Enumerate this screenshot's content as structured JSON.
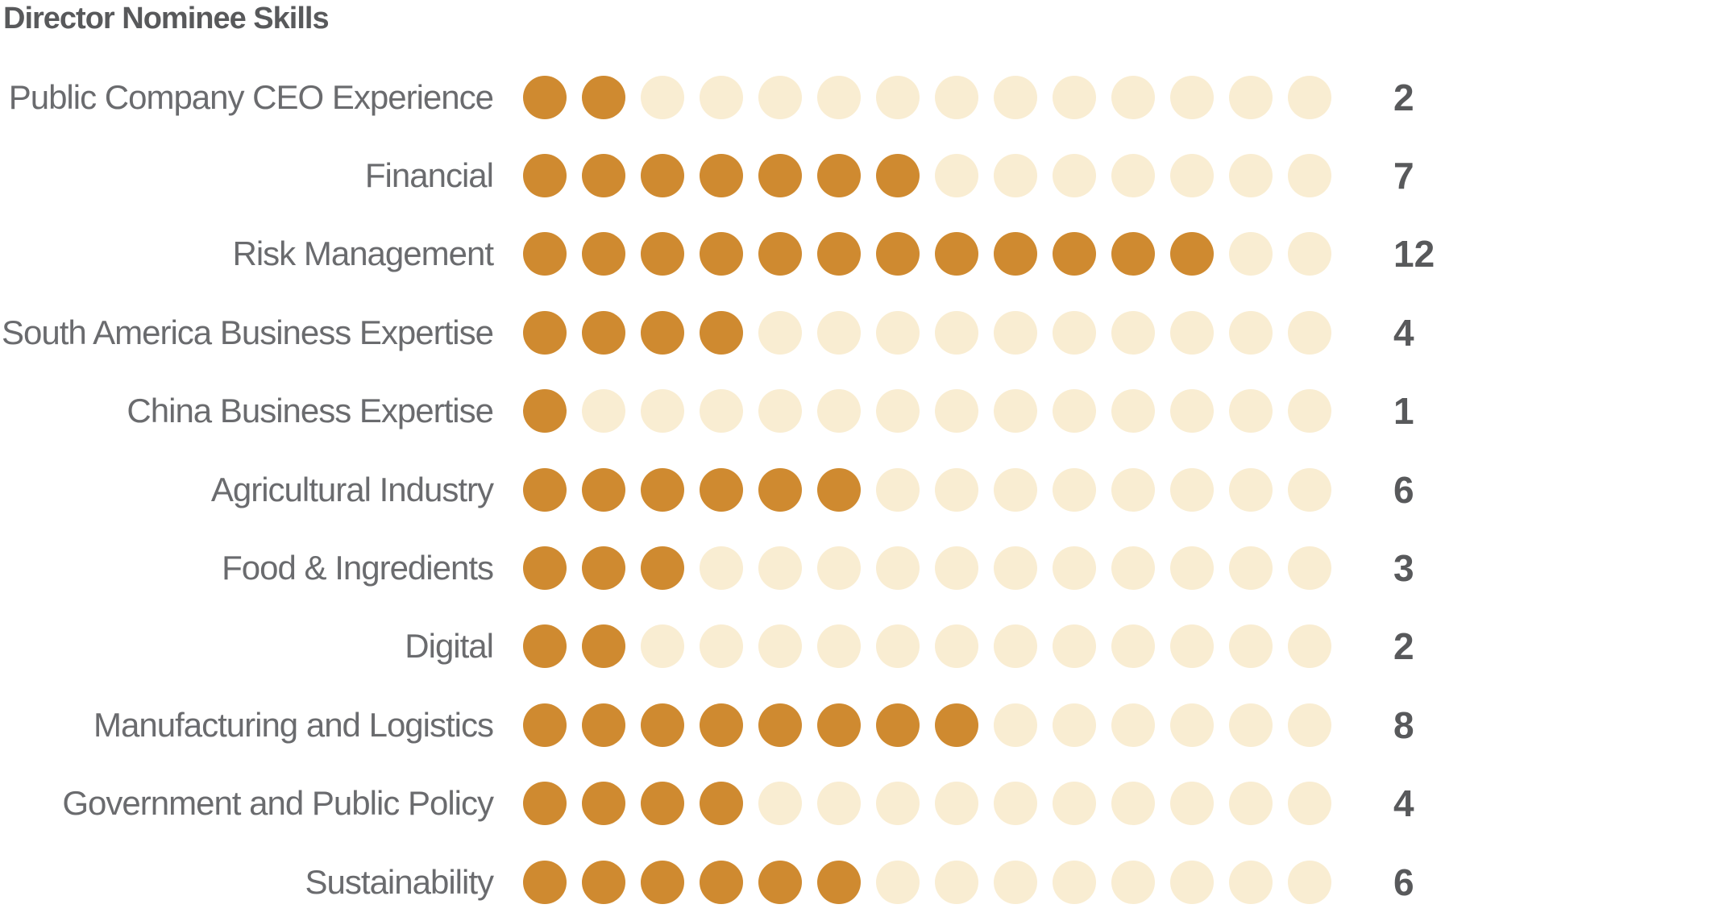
{
  "title": "Director Nominee Skills",
  "colors": {
    "filled_dot": "#CF8A30",
    "empty_dot": "#F9EDD2",
    "title_text": "#58595B",
    "label_text": "#6A6B6E",
    "count_text": "#58595B"
  },
  "chart_data": {
    "type": "pictogram-dot-rows",
    "title": "Director Nominee Skills",
    "max_dots_per_row": 14,
    "legend_position": "none",
    "grid": false,
    "categories": [
      "Public Company CEO Experience",
      "Financial",
      "Risk Management",
      "South America Business Expertise",
      "China Business Expertise",
      "Agricultural Industry",
      "Food & Ingredients",
      "Digital",
      "Manufacturing and Logistics",
      "Government and Public Policy",
      "Sustainability"
    ],
    "values": [
      2,
      7,
      12,
      4,
      1,
      6,
      3,
      2,
      8,
      4,
      6
    ],
    "value_labels": [
      "2",
      "7",
      "12",
      "4",
      "1",
      "6",
      "3",
      "2",
      "8",
      "4",
      "6"
    ],
    "xlim": [
      0,
      14
    ]
  }
}
